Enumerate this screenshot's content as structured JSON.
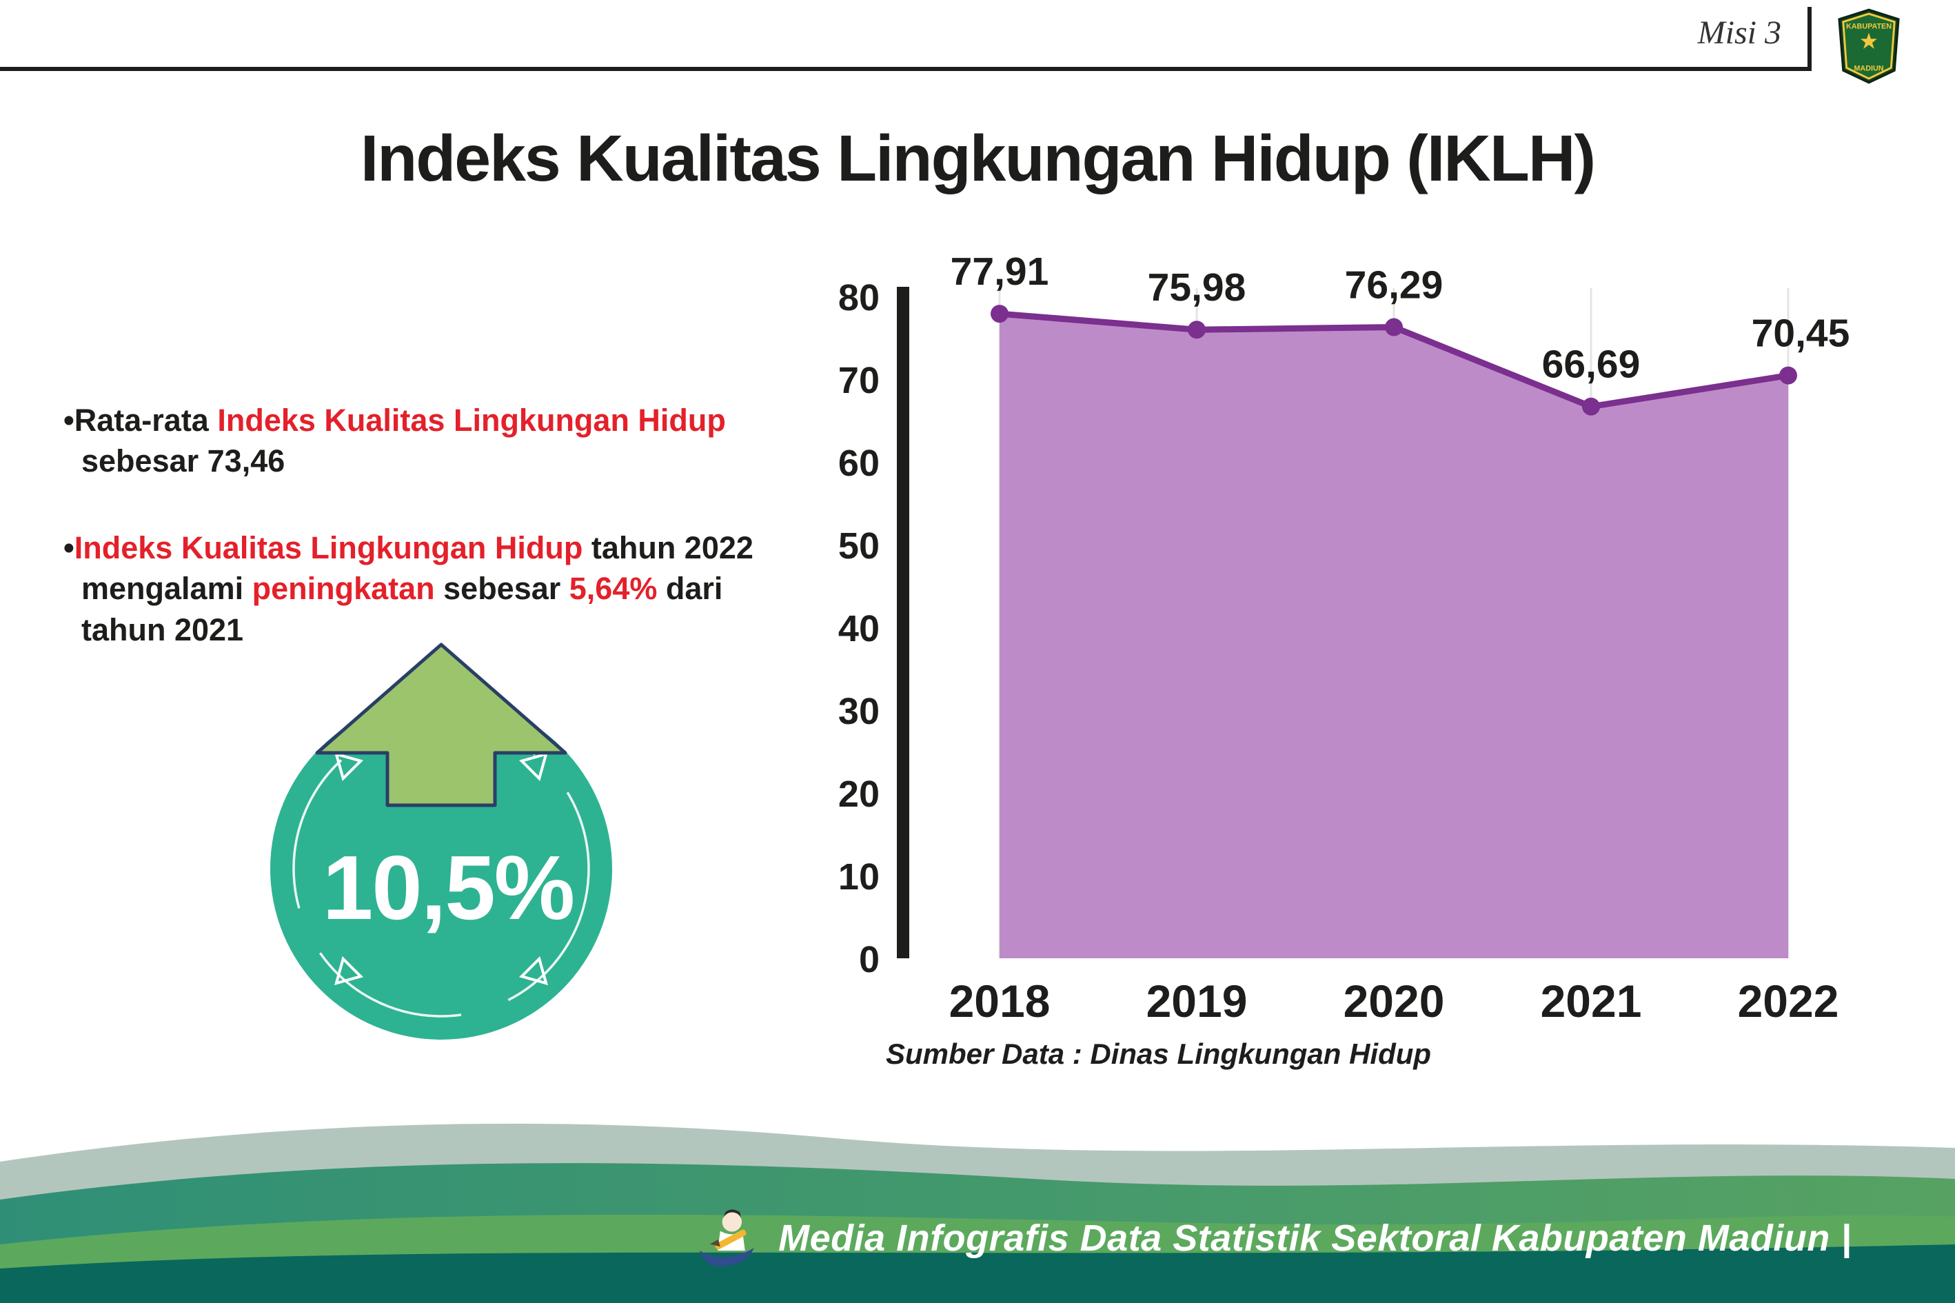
{
  "header": {
    "misi_label": "Misi 3",
    "title": "Indeks Kualitas Lingkungan Hidup (IKLH)",
    "logo_line1": "KABUPATEN",
    "logo_line2": "MADIUN"
  },
  "bullets": {
    "marker": "•",
    "b1_pre": "Rata-rata ",
    "b1_red": "Indeks Kualitas Lingkungan Hidup",
    "b1_post": " sebesar 73,46",
    "b2_red1": "Indeks Kualitas Lingkungan Hidup",
    "b2_black1": " tahun 2022 mengalami ",
    "b2_red2": "peningkatan",
    "b2_black2": " sebesar ",
    "b2_red3": "5,64%",
    "b2_black3": " dari tahun 2021"
  },
  "badge": {
    "value": "10,5%"
  },
  "chart_data": {
    "type": "area",
    "categories": [
      "2018",
      "2019",
      "2020",
      "2021",
      "2022"
    ],
    "values": [
      77.91,
      75.98,
      76.29,
      66.69,
      70.45
    ],
    "point_labels": [
      "77,91",
      "75,98",
      "76,29",
      "66,69",
      "70,45"
    ],
    "xlabel": "",
    "ylabel": "",
    "ylim": [
      0,
      80
    ],
    "yticks": [
      0,
      10,
      20,
      30,
      40,
      50,
      60,
      70,
      80
    ],
    "grid": "vertical-faint",
    "legend": "none",
    "line_color": "#7b2f8e",
    "fill_color": "#bd8cc8",
    "source": "Sumber Data : Dinas Lingkungan Hidup"
  },
  "footer": {
    "credit": "Media Infografis Data Statistik Sektoral Kabupaten Madiun |"
  },
  "colors": {
    "accent_red": "#e4202a",
    "badge_teal": "#2db392",
    "arrow_green": "#9cc46d",
    "footer_dark_teal": "#0a675c"
  }
}
